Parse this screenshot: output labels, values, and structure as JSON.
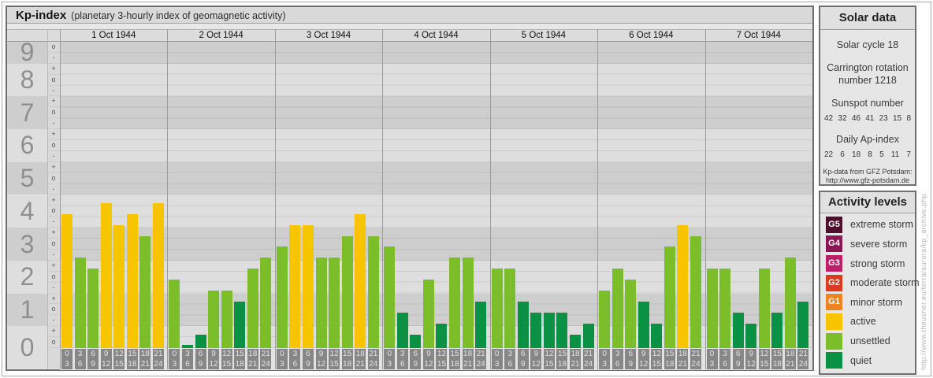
{
  "page": {
    "vertical_url": "http://www.theusner.eu/terra/aurora/kp_archive.php"
  },
  "header": {
    "title": "Kp-index",
    "subtitle": "(planetary 3-hourly index of geomagnetic activity)"
  },
  "y_axis": {
    "numbers": [
      9,
      8,
      7,
      6,
      5,
      4,
      3,
      2,
      1,
      0
    ],
    "tick_labels": [
      "o",
      "-",
      "+",
      "o",
      "-",
      "+",
      "o",
      "-",
      "+",
      "o",
      "-",
      "+",
      "o",
      "-",
      "+",
      "o",
      "-",
      "+",
      "o",
      "-",
      "+",
      "o",
      "-",
      "+",
      "o",
      "-",
      "+",
      "o"
    ]
  },
  "x_axis": {
    "intervals": [
      [
        "0",
        "3"
      ],
      [
        "3",
        "6"
      ],
      [
        "6",
        "9"
      ],
      [
        "9",
        "12"
      ],
      [
        "12",
        "15"
      ],
      [
        "15",
        "18"
      ],
      [
        "18",
        "21"
      ],
      [
        "21",
        "24"
      ]
    ]
  },
  "chart_data": {
    "type": "bar",
    "title": "Kp-index",
    "ylabel": "Kp",
    "ylim": [
      0,
      9.33
    ],
    "grid": true,
    "legend_position": "right-panel",
    "days": [
      {
        "date": "1 Oct 1944",
        "kp_labels": [
          "4o",
          "3-",
          "2+",
          "4+",
          "4-",
          "4o",
          "3+",
          "4+"
        ],
        "kp_values": [
          4.0,
          2.67,
          2.33,
          4.33,
          3.67,
          4.0,
          3.33,
          4.33
        ],
        "levels": [
          "active",
          "unsettled",
          "unsettled",
          "active",
          "active",
          "active",
          "unsettled",
          "active"
        ]
      },
      {
        "date": "2 Oct 1944",
        "kp_labels": [
          "2o",
          "0o",
          "0+",
          "2-",
          "2-",
          "1+",
          "2+",
          "3-"
        ],
        "kp_values": [
          2.0,
          0.0,
          0.33,
          1.67,
          1.67,
          1.33,
          2.33,
          2.67
        ],
        "levels": [
          "unsettled",
          "quiet",
          "quiet",
          "unsettled",
          "unsettled",
          "quiet",
          "unsettled",
          "unsettled"
        ]
      },
      {
        "date": "3 Oct 1944",
        "kp_labels": [
          "3o",
          "4-",
          "4-",
          "3-",
          "3-",
          "3+",
          "4o",
          "3+"
        ],
        "kp_values": [
          3.0,
          3.67,
          3.67,
          2.67,
          2.67,
          3.33,
          4.0,
          3.33
        ],
        "levels": [
          "unsettled",
          "active",
          "active",
          "unsettled",
          "unsettled",
          "unsettled",
          "active",
          "unsettled"
        ]
      },
      {
        "date": "4 Oct 1944",
        "kp_labels": [
          "3o",
          "1o",
          "0+",
          "2o",
          "1-",
          "3-",
          "3-",
          "1+"
        ],
        "kp_values": [
          3.0,
          1.0,
          0.33,
          2.0,
          0.67,
          2.67,
          2.67,
          1.33
        ],
        "levels": [
          "unsettled",
          "quiet",
          "quiet",
          "unsettled",
          "quiet",
          "unsettled",
          "unsettled",
          "quiet"
        ]
      },
      {
        "date": "5 Oct 1944",
        "kp_labels": [
          "2+",
          "2+",
          "1+",
          "1o",
          "1o",
          "1o",
          "0+",
          "1-"
        ],
        "kp_values": [
          2.33,
          2.33,
          1.33,
          1.0,
          1.0,
          1.0,
          0.33,
          0.67
        ],
        "levels": [
          "unsettled",
          "unsettled",
          "quiet",
          "quiet",
          "quiet",
          "quiet",
          "quiet",
          "quiet"
        ]
      },
      {
        "date": "6 Oct 1944",
        "kp_labels": [
          "2-",
          "2+",
          "2o",
          "1+",
          "1-",
          "3o",
          "4-",
          "3+"
        ],
        "kp_values": [
          1.67,
          2.33,
          2.0,
          1.33,
          0.67,
          3.0,
          3.67,
          3.33
        ],
        "levels": [
          "unsettled",
          "unsettled",
          "unsettled",
          "quiet",
          "quiet",
          "unsettled",
          "active",
          "unsettled"
        ]
      },
      {
        "date": "7 Oct 1944",
        "kp_labels": [
          "2+",
          "2+",
          "1o",
          "1-",
          "2+",
          "1o",
          "3-",
          "1+"
        ],
        "kp_values": [
          2.33,
          2.33,
          1.0,
          0.67,
          2.33,
          1.0,
          2.67,
          1.33
        ],
        "levels": [
          "unsettled",
          "unsettled",
          "quiet",
          "quiet",
          "unsettled",
          "quiet",
          "unsettled",
          "quiet"
        ]
      }
    ]
  },
  "solar": {
    "title": "Solar data",
    "cycle": "Solar cycle 18",
    "carrington_line1": "Carrington rotation",
    "carrington_line2": "number 1218",
    "sunspot_title": "Sunspot number",
    "sunspot_values": [
      "42",
      "32",
      "46",
      "41",
      "23",
      "15",
      "8"
    ],
    "ap_title": "Daily Ap-index",
    "ap_values": [
      "22",
      "6",
      "18",
      "8",
      "5",
      "11",
      "7"
    ],
    "source_line1": "Kp-data from GFZ Potsdam:",
    "source_line2": "http://www.gfz-potsdam.de"
  },
  "activity": {
    "title": "Activity levels",
    "items": [
      {
        "code": "G5",
        "label": "extreme storm",
        "color": "#4e0f2c"
      },
      {
        "code": "G4",
        "label": "severe storm",
        "color": "#8c1653"
      },
      {
        "code": "G3",
        "label": "strong storm",
        "color": "#bb2069"
      },
      {
        "code": "G2",
        "label": "moderate storm",
        "color": "#dc3b21"
      },
      {
        "code": "G1",
        "label": "minor storm",
        "color": "#ec8423"
      },
      {
        "code": "",
        "label": "active",
        "color": "#f7c500"
      },
      {
        "code": "",
        "label": "unsettled",
        "color": "#7cbe29"
      },
      {
        "code": "",
        "label": "quiet",
        "color": "#0b9143"
      }
    ]
  },
  "colors": {
    "active": "#f7c500",
    "unsettled": "#7cbe29",
    "quiet": "#0b9143",
    "stripe_dark": "#cecece",
    "stripe_light": "#dedede"
  }
}
